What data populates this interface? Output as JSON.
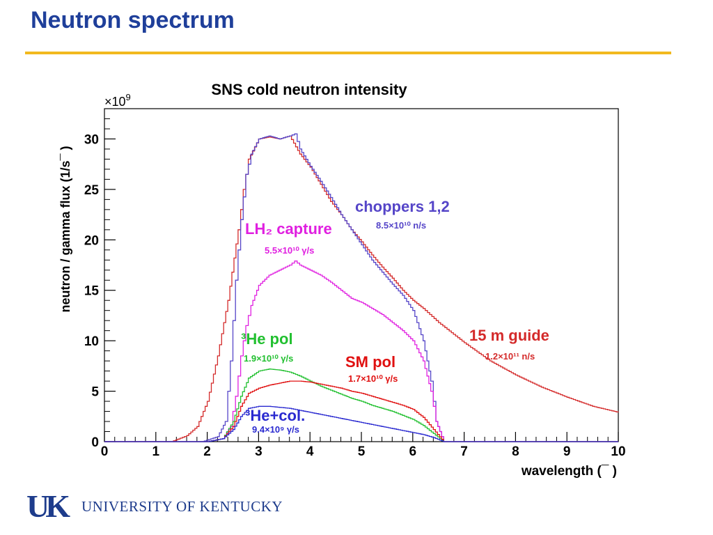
{
  "slide": {
    "title": "Neutron spectrum",
    "footer_logo_mark": "UK",
    "footer_logo_text": "UNIVERSITY OF KENTUCKY"
  },
  "colors": {
    "title": "#1f3f9a",
    "rule": "#f2b91e",
    "guide": "#d42a2a",
    "choppers": "#5545c8",
    "lh2": "#e020e0",
    "he_pol": "#22c030",
    "sm_pol": "#e01010",
    "he_col": "#2a2ad0"
  },
  "chart_data": {
    "type": "line",
    "title": "SNS cold neutron intensity",
    "xlabel": "wavelength (¯ )",
    "ylabel": "neutron / gamma flux (1/s¯ )",
    "exponent_label": "×10",
    "exponent_power": "9",
    "xlim": [
      0,
      10
    ],
    "ylim": [
      0,
      33
    ],
    "x_ticks": [
      0,
      1,
      2,
      3,
      4,
      5,
      6,
      7,
      8,
      9,
      10
    ],
    "y_ticks": [
      0,
      5,
      10,
      15,
      20,
      25,
      30
    ],
    "grid": false,
    "series": [
      {
        "key": "guide",
        "name": "15 m guide",
        "rate": "1.2×10¹¹ n/s",
        "color": "#d42a2a",
        "x": [
          0,
          1.3,
          1.6,
          1.8,
          2.0,
          2.2,
          2.4,
          2.6,
          2.7,
          2.8,
          3.0,
          3.2,
          3.4,
          3.6,
          3.8,
          4.0,
          4.2,
          4.4,
          4.6,
          4.8,
          5.0,
          5.2,
          5.4,
          5.6,
          5.8,
          6.0,
          6.2,
          6.5,
          7.0,
          7.5,
          8.0,
          8.5,
          9.0,
          9.5,
          10.0
        ],
        "y": [
          0,
          0,
          0.6,
          1.5,
          4.0,
          8.5,
          14.0,
          21.0,
          25.0,
          28.0,
          30.0,
          30.2,
          30.0,
          30.3,
          28.5,
          27.2,
          25.5,
          23.8,
          22.5,
          21.0,
          19.8,
          18.5,
          17.3,
          16.2,
          15.0,
          14.0,
          13.2,
          11.8,
          9.8,
          8.0,
          6.6,
          5.4,
          4.4,
          3.5,
          2.9
        ]
      },
      {
        "key": "choppers",
        "name": "choppers 1,2",
        "rate": "8.5×10¹⁰ n/s",
        "color": "#5545c8",
        "x": [
          0,
          1.9,
          2.2,
          2.35,
          2.45,
          2.55,
          2.65,
          2.75,
          2.85,
          3.0,
          3.2,
          3.4,
          3.6,
          3.7,
          3.8,
          4.0,
          4.2,
          4.4,
          4.6,
          4.8,
          5.0,
          5.2,
          5.4,
          5.6,
          5.8,
          6.0,
          6.2,
          6.35,
          6.45,
          6.6,
          10.0
        ],
        "y": [
          0,
          0,
          0.5,
          2.0,
          8.0,
          16.0,
          22.0,
          26.5,
          28.5,
          30.0,
          30.3,
          30.0,
          30.3,
          30.5,
          29.0,
          27.3,
          25.8,
          24.2,
          22.5,
          21.0,
          19.5,
          18.0,
          16.8,
          15.6,
          14.5,
          13.0,
          10.0,
          6.0,
          2.0,
          0,
          0
        ]
      },
      {
        "key": "lh2",
        "name": "LH₂ capture",
        "rate": "5.5×10¹⁰ γ/s",
        "color": "#e020e0",
        "x": [
          0,
          2.0,
          2.3,
          2.45,
          2.55,
          2.65,
          2.75,
          2.85,
          3.0,
          3.2,
          3.4,
          3.6,
          3.7,
          3.8,
          4.0,
          4.2,
          4.4,
          4.6,
          4.8,
          5.0,
          5.2,
          5.4,
          5.6,
          5.8,
          6.0,
          6.2,
          6.35,
          6.45,
          6.6,
          10.0
        ],
        "y": [
          0,
          0,
          0.3,
          1.5,
          4.5,
          8.5,
          11.5,
          13.5,
          15.5,
          16.5,
          17.0,
          17.5,
          17.9,
          17.5,
          17.0,
          16.5,
          15.8,
          15.0,
          14.2,
          13.8,
          13.2,
          12.6,
          11.8,
          11.0,
          10.0,
          8.0,
          5.0,
          2.0,
          0,
          0
        ]
      },
      {
        "key": "he_pol",
        "name": "³He pol",
        "rate": "1.9×10¹⁰ γ/s",
        "color": "#22c030",
        "x": [
          0,
          2.0,
          2.3,
          2.5,
          2.65,
          2.8,
          3.0,
          3.2,
          3.4,
          3.6,
          3.8,
          4.0,
          4.2,
          4.4,
          4.6,
          4.8,
          5.0,
          5.2,
          5.4,
          5.6,
          5.8,
          6.0,
          6.2,
          6.4,
          6.6,
          10.0
        ],
        "y": [
          0,
          0,
          0.3,
          2.0,
          4.5,
          6.3,
          7.0,
          7.2,
          7.1,
          6.9,
          6.5,
          6.0,
          5.5,
          5.1,
          4.7,
          4.3,
          4.0,
          3.6,
          3.3,
          3.0,
          2.6,
          2.2,
          1.6,
          0.8,
          0,
          0
        ]
      },
      {
        "key": "sm_pol",
        "name": "SM pol",
        "rate": "1.7×10¹⁰ γ/s",
        "color": "#e01010",
        "x": [
          0,
          2.0,
          2.3,
          2.5,
          2.65,
          2.8,
          3.0,
          3.2,
          3.4,
          3.6,
          3.8,
          4.0,
          4.2,
          4.4,
          4.6,
          4.8,
          5.0,
          5.2,
          5.4,
          5.6,
          5.8,
          6.0,
          6.2,
          6.4,
          6.6,
          10.0
        ],
        "y": [
          0,
          0,
          0.3,
          1.5,
          3.5,
          4.8,
          5.3,
          5.6,
          5.8,
          6.0,
          6.0,
          5.9,
          5.7,
          5.5,
          5.3,
          5.0,
          4.8,
          4.5,
          4.2,
          3.9,
          3.6,
          3.2,
          2.4,
          1.2,
          0,
          0
        ]
      },
      {
        "key": "he_col",
        "name": "³He+col.",
        "rate": "9.4×10⁹ γ/s",
        "color": "#2a2ad0",
        "x": [
          0,
          2.0,
          2.3,
          2.5,
          2.65,
          2.8,
          3.0,
          3.2,
          3.4,
          3.6,
          3.8,
          4.0,
          4.2,
          4.4,
          4.6,
          4.8,
          5.0,
          5.2,
          5.4,
          5.6,
          5.8,
          6.0,
          6.2,
          6.4,
          6.6,
          10.0
        ],
        "y": [
          0,
          0,
          0.3,
          1.2,
          2.5,
          3.3,
          3.5,
          3.5,
          3.4,
          3.3,
          3.1,
          2.9,
          2.7,
          2.5,
          2.3,
          2.1,
          1.9,
          1.7,
          1.5,
          1.3,
          1.1,
          0.9,
          0.7,
          0.4,
          0,
          0
        ]
      }
    ]
  }
}
